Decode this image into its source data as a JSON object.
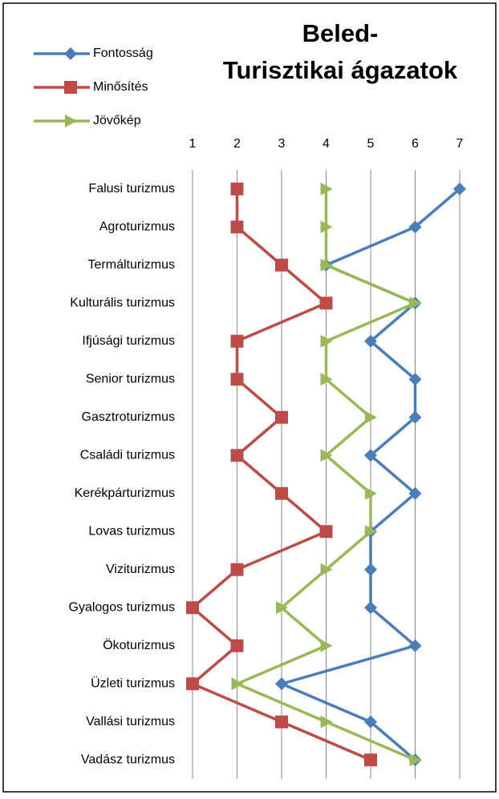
{
  "chart_data": {
    "type": "line",
    "orientation": "horizontal",
    "title": [
      "Beled-",
      "Turisztikai ágazatok"
    ],
    "categories": [
      "Falusi turizmus",
      "Agroturizmus",
      "Termálturizmus",
      "Kulturális turizmus",
      "Ifjúsági turizmus",
      "Senior turizmus",
      "Gasztroturizmus",
      "Családi turizmus",
      "Kerékpárturizmus",
      "Lovas turizmus",
      "Viziturizmus",
      "Gyalogos turizmus",
      "Ökoturizmus",
      "Üzleti turizmus",
      "Vallási turizmus",
      "Vadász turizmus"
    ],
    "series": [
      {
        "name": "Fontosság",
        "color": "#4a7ebb",
        "marker": "diamond",
        "values": [
          7,
          6,
          4,
          6,
          5,
          6,
          6,
          5,
          6,
          5,
          5,
          5,
          6,
          3,
          5,
          6
        ]
      },
      {
        "name": "Minősítés",
        "color": "#be4b48",
        "marker": "square",
        "values": [
          2,
          2,
          3,
          4,
          2,
          2,
          3,
          2,
          3,
          4,
          2,
          1,
          2,
          1,
          3,
          5
        ]
      },
      {
        "name": "Jövőkép",
        "color": "#98b954",
        "marker": "triangle",
        "values": [
          4,
          4,
          4,
          6,
          4,
          4,
          5,
          4,
          5,
          5,
          4,
          3,
          4,
          2,
          4,
          6
        ]
      }
    ],
    "xlim": [
      1,
      7
    ],
    "xticks": [
      1,
      2,
      3,
      4,
      5,
      6,
      7
    ],
    "grid": true,
    "legend": "top-left"
  }
}
